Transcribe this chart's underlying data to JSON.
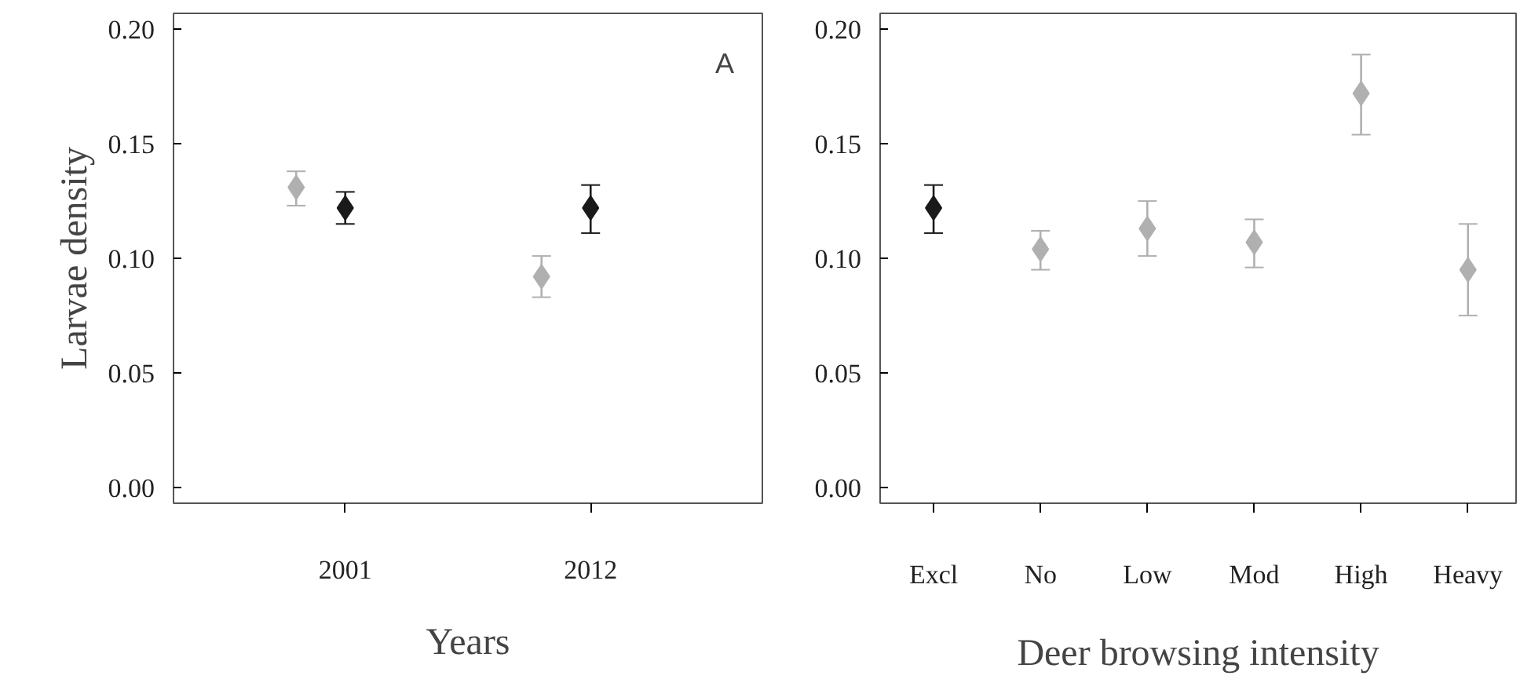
{
  "chart_data": [
    {
      "type": "scatter",
      "xlabel": "Years",
      "ylabel": "Larvae density",
      "categories": [
        "2001",
        "2012"
      ],
      "ylim": [
        -0.007,
        0.207
      ],
      "yticks": [
        {
          "value": 0,
          "label": "0.00"
        },
        {
          "value": 0.05,
          "label": "0.05"
        },
        {
          "value": 0.1,
          "label": "0.10"
        },
        {
          "value": 0.15,
          "label": "0.15"
        },
        {
          "value": 0.2,
          "label": "0.20"
        }
      ],
      "marker": "diamond",
      "grid": false,
      "annotations": [
        "A"
      ],
      "series": [
        {
          "color": "#b0b0b0",
          "values": [
            0.131,
            0.092
          ],
          "errors": [
            [
              0.123,
              0.138
            ],
            [
              0.083,
              0.101
            ]
          ]
        },
        {
          "color": "#1a1a1a",
          "values": [
            0.122,
            0.122
          ],
          "errors": [
            [
              0.115,
              0.129
            ],
            [
              0.111,
              0.132
            ]
          ]
        }
      ]
    },
    {
      "type": "scatter",
      "xlabel": "Deer browsing intensity",
      "categories": [
        "Excl",
        "No",
        "Low",
        "Mod",
        "High",
        "Heavy"
      ],
      "ylim": [
        -0.007,
        0.207
      ],
      "yticks": [
        {
          "value": 0,
          "label": "0.00"
        },
        {
          "value": 0.05,
          "label": "0.05"
        },
        {
          "value": 0.1,
          "label": "0.10"
        },
        {
          "value": 0.15,
          "label": "0.15"
        },
        {
          "value": 0.2,
          "label": "0.20"
        }
      ],
      "marker": "diamond",
      "grid": false,
      "series": [
        {
          "colors": [
            "#1a1a1a",
            "#b0b0b0",
            "#b0b0b0",
            "#b0b0b0",
            "#b0b0b0",
            "#b0b0b0"
          ],
          "values": [
            0.122,
            0.104,
            0.113,
            0.107,
            0.172,
            0.095
          ],
          "errors": [
            [
              0.111,
              0.132
            ],
            [
              0.095,
              0.112
            ],
            [
              0.101,
              0.125
            ],
            [
              0.096,
              0.117
            ],
            [
              0.154,
              0.189
            ],
            [
              0.075,
              0.115
            ]
          ]
        }
      ]
    }
  ]
}
